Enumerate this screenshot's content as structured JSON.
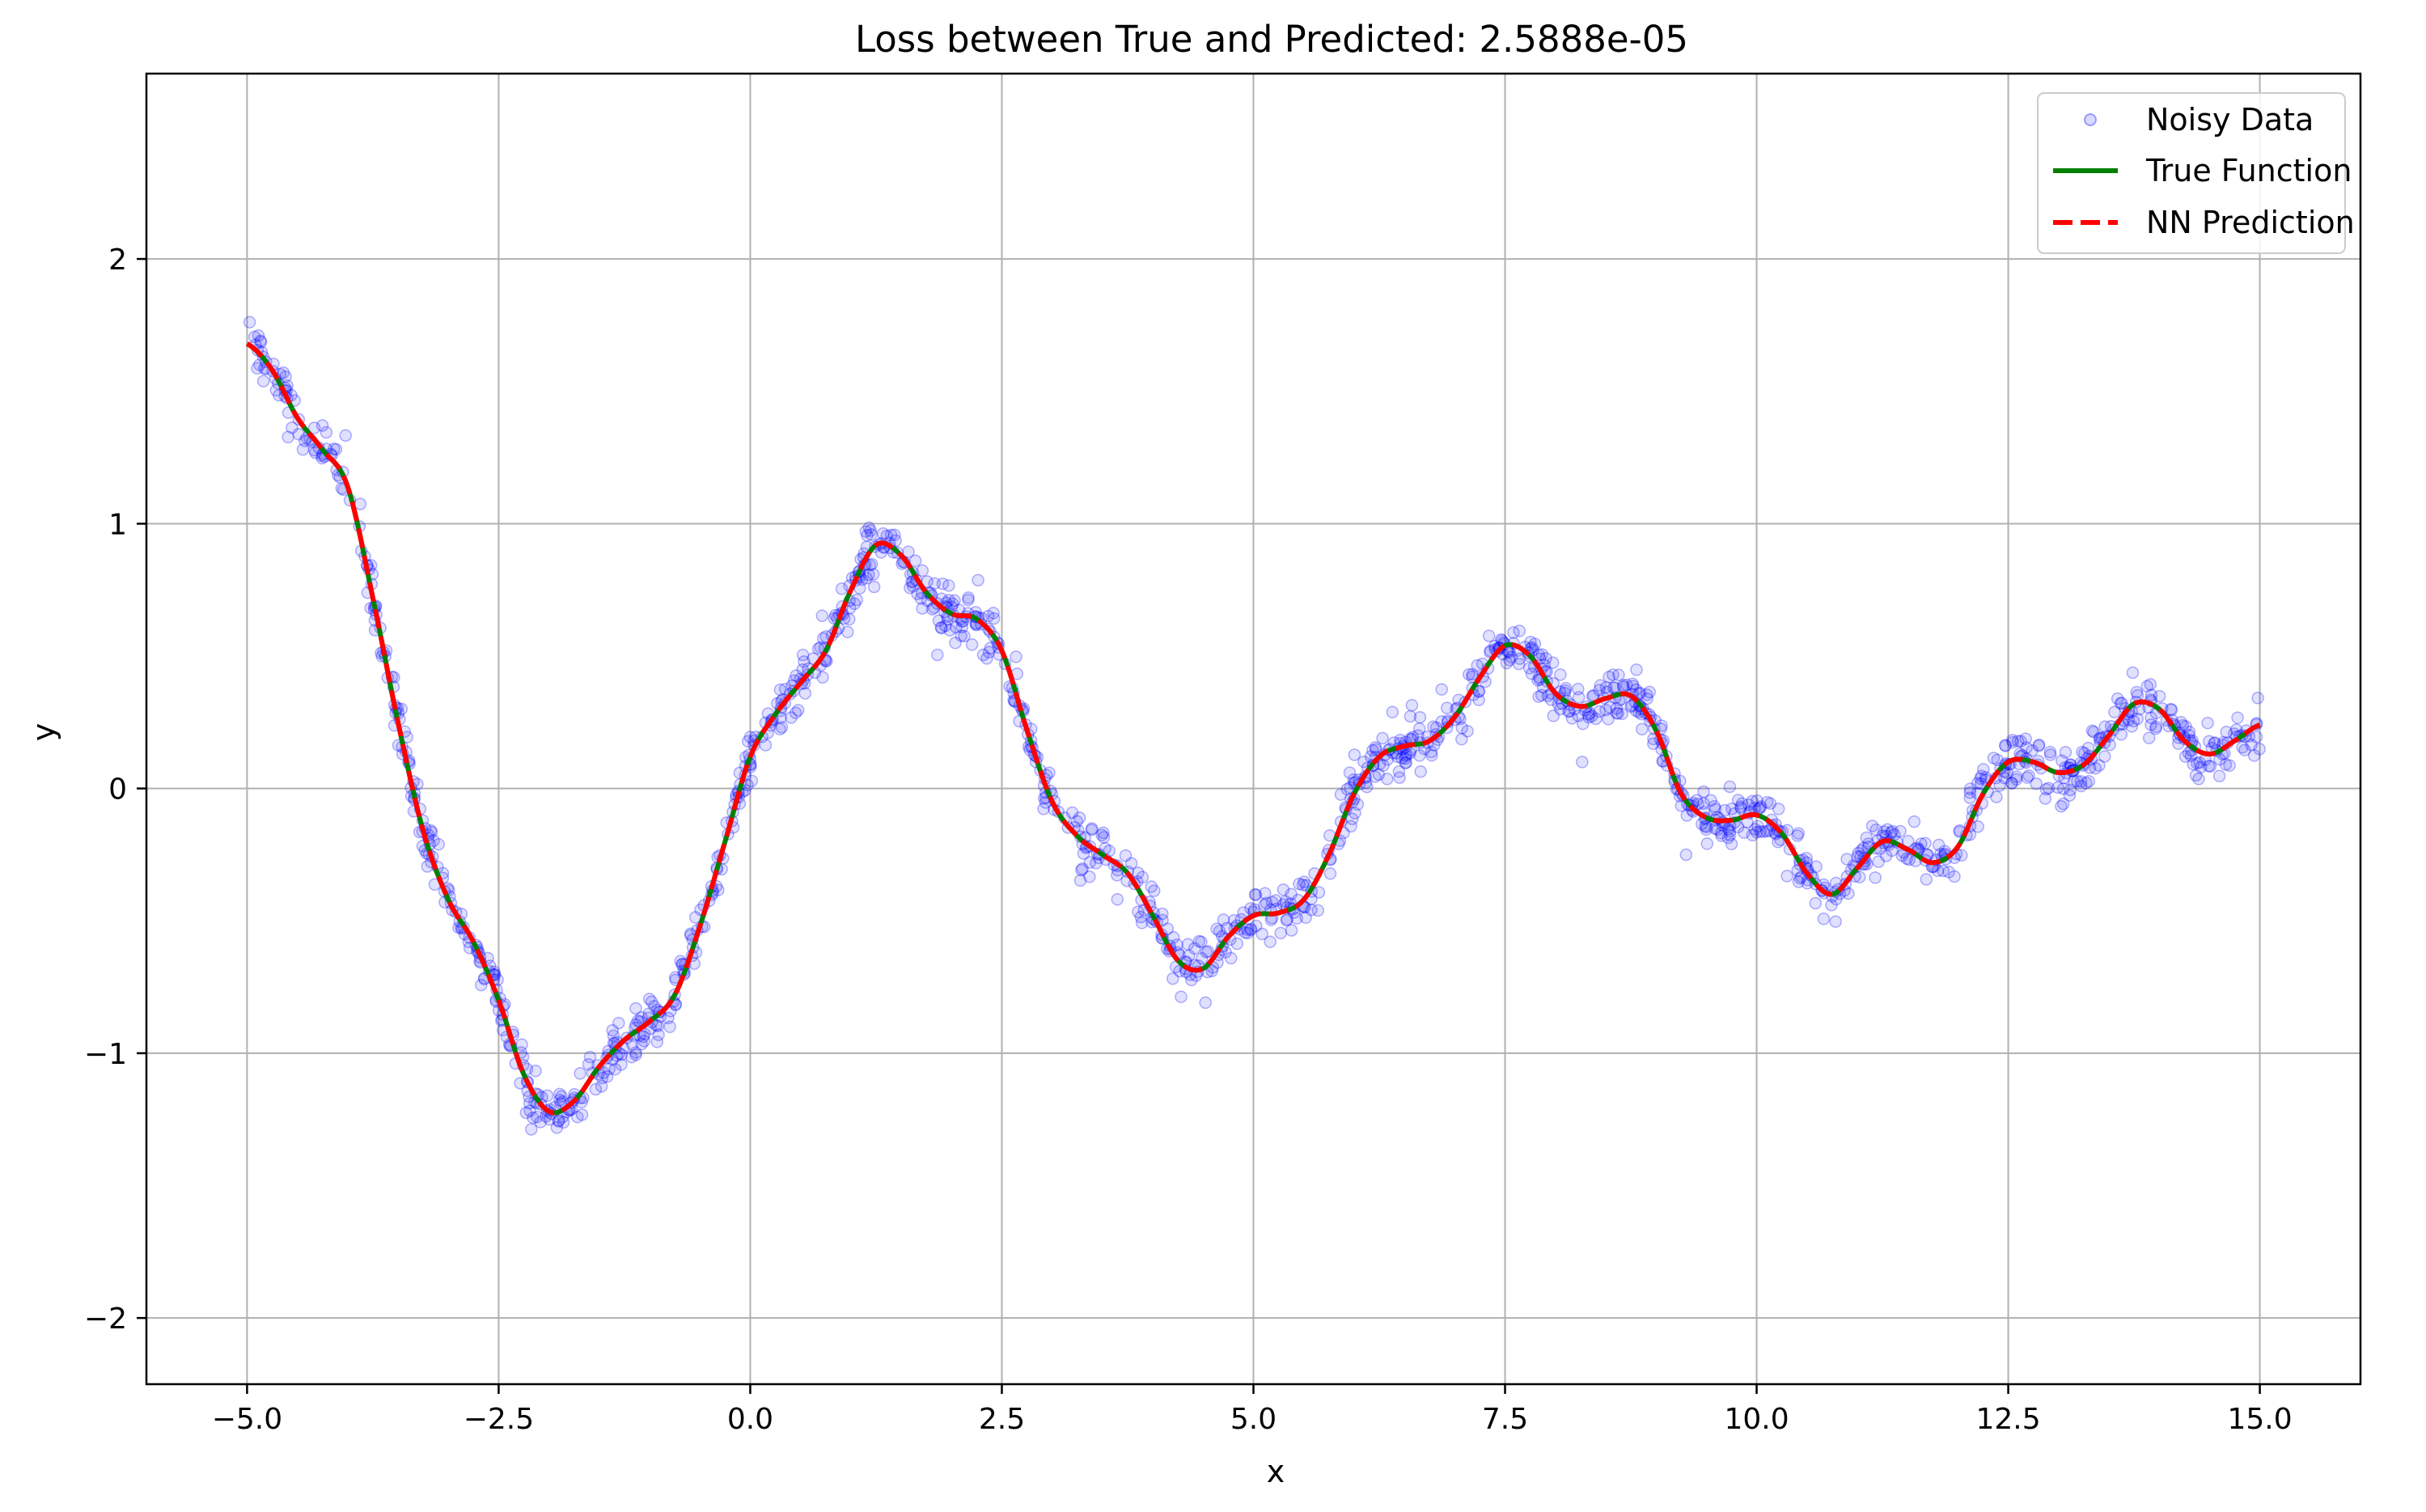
{
  "chart_data": {
    "type": "line",
    "title": "Loss between True and Predicted: 2.5888e-05",
    "xlabel": "x",
    "ylabel": "y",
    "xlim": [
      -6.0,
      16.0
    ],
    "ylim": [
      -2.25,
      2.7
    ],
    "grid": true,
    "legend_position": "top-right",
    "x_ticks": [
      -5.0,
      -2.5,
      0.0,
      2.5,
      5.0,
      7.5,
      10.0,
      12.5,
      15.0
    ],
    "x_tick_labels": [
      "−5.0",
      "−2.5",
      "0.0",
      "2.5",
      "5.0",
      "7.5",
      "10.0",
      "12.5",
      "15.0"
    ],
    "y_ticks": [
      -2,
      -1,
      0,
      1,
      2
    ],
    "y_tick_labels": [
      "−2",
      "−1",
      "0",
      "1",
      "2"
    ],
    "colors": {
      "noisy": "#0000ff",
      "true": "#008000",
      "prediction": "#ff0000",
      "grid": "#b0b0b0"
    },
    "series": [
      {
        "name": "Noisy Data",
        "kind": "scatter",
        "noise_sd": 0.05,
        "x_range": [
          -5.0,
          15.0
        ]
      },
      {
        "name": "True Function",
        "kind": "line",
        "x": [
          -5.0,
          -4.75,
          -4.5,
          -4.25,
          -4.0,
          -3.75,
          -3.5,
          -3.25,
          -3.0,
          -2.75,
          -2.5,
          -2.25,
          -2.0,
          -1.75,
          -1.5,
          -1.25,
          -1.0,
          -0.75,
          -0.5,
          -0.25,
          0.0,
          0.25,
          0.5,
          0.75,
          1.0,
          1.25,
          1.5,
          1.75,
          2.0,
          2.25,
          2.5,
          2.75,
          3.0,
          3.25,
          3.5,
          3.75,
          4.0,
          4.25,
          4.5,
          4.75,
          5.0,
          5.25,
          5.5,
          5.75,
          6.0,
          6.25,
          6.5,
          6.75,
          7.0,
          7.25,
          7.5,
          7.75,
          8.0,
          8.25,
          8.5,
          8.75,
          9.0,
          9.25,
          9.5,
          9.75,
          10.0,
          10.25,
          10.5,
          10.75,
          11.0,
          11.25,
          11.5,
          11.75,
          12.0,
          12.25,
          12.5,
          12.75,
          13.0,
          13.25,
          13.5,
          13.75,
          14.0,
          14.25,
          14.5,
          14.75,
          15.0
        ],
        "y": [
          1.68,
          1.58,
          1.4,
          1.28,
          1.14,
          0.72,
          0.25,
          -0.16,
          -0.42,
          -0.58,
          -0.8,
          -1.08,
          -1.22,
          -1.18,
          -1.05,
          -0.95,
          -0.88,
          -0.78,
          -0.52,
          -0.2,
          0.12,
          0.28,
          0.4,
          0.52,
          0.75,
          0.92,
          0.88,
          0.74,
          0.66,
          0.64,
          0.52,
          0.22,
          -0.05,
          -0.18,
          -0.25,
          -0.32,
          -0.48,
          -0.65,
          -0.68,
          -0.56,
          -0.48,
          -0.47,
          -0.42,
          -0.25,
          -0.02,
          0.12,
          0.16,
          0.18,
          0.27,
          0.42,
          0.54,
          0.5,
          0.36,
          0.31,
          0.34,
          0.35,
          0.22,
          -0.02,
          -0.11,
          -0.12,
          -0.1,
          -0.17,
          -0.32,
          -0.4,
          -0.3,
          -0.2,
          -0.23,
          -0.28,
          -0.22,
          -0.02,
          0.1,
          0.1,
          0.06,
          0.09,
          0.2,
          0.32,
          0.3,
          0.18,
          0.13,
          0.18,
          0.24
        ]
      },
      {
        "name": "NN Prediction",
        "kind": "line",
        "style": "dashed",
        "same_as": "True Function"
      }
    ]
  }
}
